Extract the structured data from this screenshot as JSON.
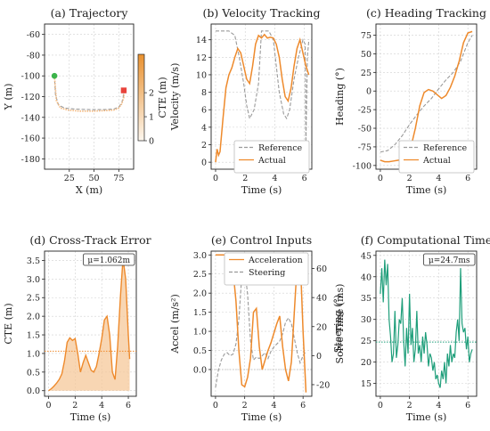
{
  "colors": {
    "actual": "#ee8a2c",
    "reference": "#9a9a9a",
    "start": "#3cb44b",
    "end": "#e8433c",
    "solve": "#1e9e7a",
    "fill": "#f6c89a"
  },
  "chart_data": [
    {
      "id": "a",
      "type": "line",
      "title": "(a) Trajectory",
      "xlabel": "X (m)",
      "ylabel": "Y (m)",
      "xlim": [
        0,
        90
      ],
      "ylim": [
        -190,
        -50
      ],
      "xticks": [
        25,
        50,
        75
      ],
      "yticks": [
        -60,
        -80,
        -100,
        -120,
        -140,
        -160,
        -180
      ],
      "colorbar": {
        "label": "CTE (m)",
        "range": [
          0,
          3.6
        ],
        "ticks": [
          0,
          1,
          2
        ]
      },
      "series": [
        {
          "role": "reference",
          "x": [
            10,
            11,
            14,
            20,
            30,
            45,
            60,
            70,
            75,
            78,
            79.5,
            80
          ],
          "y": [
            -100,
            -118,
            -128,
            -131,
            -132,
            -132.5,
            -132.5,
            -132,
            -130,
            -126,
            -120,
            -114
          ]
        },
        {
          "role": "actual",
          "x": [
            10,
            12,
            16,
            24,
            35,
            50,
            62,
            70,
            75,
            78,
            80,
            80.5
          ],
          "y": [
            -100,
            -124,
            -131,
            -133,
            -134,
            -134,
            -133.5,
            -133,
            -131,
            -127,
            -121,
            -114
          ]
        }
      ],
      "markers": {
        "start": [
          10,
          -100
        ],
        "end": [
          80,
          -114
        ]
      }
    },
    {
      "id": "b",
      "type": "line",
      "title": "(b) Velocity Tracking",
      "xlabel": "Time (s)",
      "ylabel": "Velocity (m/s)",
      "xlim": [
        -0.3,
        6.5
      ],
      "ylim": [
        -0.8,
        15.8
      ],
      "xticks": [
        0,
        2,
        4,
        6
      ],
      "yticks": [
        0,
        2,
        4,
        6,
        8,
        10,
        12,
        14
      ],
      "legend": [
        "Reference",
        "Actual"
      ],
      "legend_position": "lower-right",
      "series": [
        {
          "name": "Reference",
          "x": [
            0,
            0.5,
            0.9,
            1.3,
            1.6,
            1.9,
            2.1,
            2.3,
            2.6,
            2.9,
            3.1,
            3.3,
            3.6,
            3.9,
            4.1,
            4.3,
            4.6,
            4.8,
            5.0,
            5.3,
            5.6,
            5.9,
            6.05,
            6.1,
            6.2,
            6.3
          ],
          "y": [
            15,
            15,
            15,
            14.5,
            12,
            9,
            6.5,
            5,
            6,
            9,
            15,
            15,
            15,
            14,
            11,
            8,
            5.5,
            5,
            6,
            9.5,
            12,
            14,
            13.5,
            2,
            12,
            14
          ]
        },
        {
          "name": "Actual",
          "x": [
            0,
            0.1,
            0.2,
            0.3,
            0.5,
            0.7,
            0.9,
            1.1,
            1.3,
            1.5,
            1.7,
            1.9,
            2.1,
            2.3,
            2.5,
            2.7,
            2.9,
            3.1,
            3.3,
            3.5,
            3.7,
            3.9,
            4.1,
            4.3,
            4.5,
            4.7,
            4.9,
            5.1,
            5.3,
            5.5,
            5.7,
            5.9,
            6.1,
            6.3
          ],
          "y": [
            0,
            1.5,
            0.8,
            1.2,
            5,
            8.5,
            10,
            10.8,
            12,
            13,
            12.5,
            11,
            9.5,
            9,
            11,
            13.5,
            14.5,
            14.2,
            14.6,
            14.2,
            14.3,
            14.2,
            13.5,
            12,
            9.5,
            7.5,
            7,
            8.5,
            11,
            13,
            14,
            12.5,
            11,
            10
          ]
        }
      ]
    },
    {
      "id": "c",
      "type": "line",
      "title": "(c) Heading Tracking",
      "xlabel": "Time (s)",
      "ylabel": "Heading (°)",
      "xlim": [
        -0.3,
        6.6
      ],
      "ylim": [
        -105,
        90
      ],
      "xticks": [
        0,
        2,
        4,
        6
      ],
      "yticks": [
        -100,
        -75,
        -50,
        -25,
        0,
        25,
        50,
        75
      ],
      "legend": [
        "Reference",
        "Actual"
      ],
      "legend_position": "lower-right",
      "series": [
        {
          "name": "Reference",
          "x": [
            0,
            0.5,
            1.0,
            1.5,
            2.0,
            2.5,
            3.0,
            3.5,
            4.0,
            4.5,
            5.0,
            5.5,
            6.0,
            6.3
          ],
          "y": [
            -82,
            -80,
            -72,
            -60,
            -45,
            -32,
            -20,
            -10,
            3,
            15,
            25,
            40,
            65,
            75
          ]
        },
        {
          "name": "Actual",
          "x": [
            0,
            0.3,
            0.6,
            0.9,
            1.2,
            1.5,
            1.8,
            2.1,
            2.4,
            2.7,
            3.0,
            3.3,
            3.6,
            3.9,
            4.2,
            4.5,
            4.8,
            5.1,
            5.4,
            5.7,
            6.0,
            6.3
          ],
          "y": [
            -93,
            -95,
            -95,
            -94,
            -93,
            -92,
            -88,
            -75,
            -50,
            -20,
            -2,
            2,
            0,
            -5,
            -10,
            -6,
            5,
            20,
            40,
            65,
            78,
            80
          ]
        }
      ]
    },
    {
      "id": "d",
      "type": "area",
      "title": "(d) Cross-Track Error",
      "xlabel": "Time (s)",
      "ylabel": "CTE (m)",
      "xlim": [
        -0.3,
        6.6
      ],
      "ylim": [
        -0.15,
        3.75
      ],
      "xticks": [
        0,
        2,
        4,
        6
      ],
      "yticks": [
        0.0,
        0.5,
        1.0,
        1.5,
        2.0,
        2.5,
        3.0,
        3.5
      ],
      "annotation": "μ=1.062m",
      "mean": 1.062,
      "series": [
        {
          "name": "CTE",
          "x": [
            0,
            0.2,
            0.4,
            0.6,
            0.8,
            1.0,
            1.2,
            1.4,
            1.6,
            1.8,
            2.0,
            2.2,
            2.4,
            2.6,
            2.8,
            3.0,
            3.2,
            3.4,
            3.6,
            3.8,
            4.0,
            4.2,
            4.4,
            4.6,
            4.8,
            5.0,
            5.2,
            5.4,
            5.6,
            5.8,
            6.0,
            6.1
          ],
          "y": [
            0.0,
            0.05,
            0.12,
            0.2,
            0.3,
            0.45,
            0.8,
            1.3,
            1.42,
            1.35,
            1.4,
            1.0,
            0.5,
            0.75,
            0.95,
            0.75,
            0.55,
            0.5,
            0.65,
            1.0,
            1.4,
            1.9,
            2.0,
            1.5,
            0.5,
            0.3,
            1.2,
            2.5,
            3.55,
            3.0,
            1.5,
            0.85
          ]
        }
      ]
    },
    {
      "id": "e",
      "type": "line",
      "title": "(e) Control Inputs",
      "xlabel": "Time (s)",
      "ylabel": "Accel (m/s²)",
      "ylabel_right": "Steering (°)",
      "xlim": [
        -0.3,
        6.6
      ],
      "ylim": [
        -0.7,
        3.1
      ],
      "ylim_right": [
        -28,
        72
      ],
      "xticks": [
        0,
        2,
        4,
        6
      ],
      "yticks": [
        0.0,
        0.5,
        1.0,
        1.5,
        2.0,
        2.5,
        3.0
      ],
      "yticks_right": [
        -20,
        0,
        20,
        40,
        60
      ],
      "legend": [
        "Acceleration",
        "Steering"
      ],
      "legend_position": "top-right",
      "series": [
        {
          "name": "Acceleration",
          "axis": "left",
          "x": [
            0,
            0.05,
            0.1,
            0.2,
            0.4,
            0.8,
            1.0,
            1.2,
            1.4,
            1.6,
            1.8,
            2.0,
            2.2,
            2.4,
            2.6,
            2.8,
            3.0,
            3.2,
            3.4,
            3.6,
            3.8,
            4.0,
            4.2,
            4.4,
            4.6,
            4.8,
            5.0,
            5.2,
            5.4,
            5.6,
            5.8,
            6.0,
            6.2
          ],
          "y": [
            3.0,
            3.0,
            3.0,
            3.0,
            3.0,
            3.0,
            3.0,
            2.6,
            1.8,
            0.5,
            -0.4,
            -0.45,
            -0.2,
            0.3,
            1.5,
            1.6,
            0.6,
            0.0,
            0.25,
            0.5,
            0.7,
            0.95,
            1.2,
            1.4,
            0.6,
            0.0,
            -0.3,
            0.2,
            1.5,
            2.8,
            3.0,
            1.0,
            -0.6
          ]
        },
        {
          "name": "Steering",
          "axis": "right",
          "x": [
            0,
            0.2,
            0.4,
            0.6,
            0.8,
            1.0,
            1.2,
            1.4,
            1.6,
            1.8,
            2.0,
            2.2,
            2.4,
            2.6,
            2.8,
            3.0,
            3.2,
            3.4,
            3.6,
            3.8,
            4.0,
            4.2,
            4.4,
            4.6,
            4.8,
            5.0,
            5.2,
            5.4,
            5.6,
            5.8,
            6.0,
            6.2
          ],
          "y": [
            -22,
            -10,
            -3,
            1,
            2,
            0,
            1,
            8,
            25,
            55,
            60,
            42,
            10,
            -3,
            -1,
            -2,
            0,
            2,
            -2,
            3,
            6,
            8,
            10,
            15,
            23,
            26,
            22,
            12,
            2,
            -5,
            0,
            3
          ]
        }
      ]
    },
    {
      "id": "f",
      "type": "line",
      "title": "(f) Computational Time",
      "xlabel": "Time (s)",
      "ylabel": "Solve Time (ms)",
      "xlim": [
        -0.3,
        6.6
      ],
      "ylim": [
        12,
        46
      ],
      "xticks": [
        0,
        2,
        4,
        6
      ],
      "yticks": [
        15,
        20,
        25,
        30,
        35,
        40,
        45
      ],
      "annotation": "μ=24.7ms",
      "mean": 24.7,
      "series": [
        {
          "name": "Solve Time",
          "x": [
            0.0,
            0.1,
            0.2,
            0.3,
            0.4,
            0.5,
            0.6,
            0.7,
            0.8,
            0.9,
            1.0,
            1.1,
            1.2,
            1.3,
            1.4,
            1.5,
            1.6,
            1.7,
            1.8,
            1.9,
            2.0,
            2.1,
            2.2,
            2.3,
            2.4,
            2.5,
            2.6,
            2.7,
            2.8,
            2.9,
            3.0,
            3.1,
            3.2,
            3.3,
            3.4,
            3.5,
            3.6,
            3.7,
            3.8,
            3.9,
            4.0,
            4.1,
            4.2,
            4.3,
            4.4,
            4.5,
            4.6,
            4.7,
            4.8,
            4.9,
            5.0,
            5.1,
            5.2,
            5.3,
            5.4,
            5.5,
            5.6,
            5.7,
            5.8,
            5.9,
            6.0,
            6.1,
            6.2,
            6.3
          ],
          "y": [
            36,
            42,
            34,
            44,
            38,
            43,
            30,
            26,
            20,
            22,
            32,
            21,
            24,
            30,
            29,
            35,
            25,
            19,
            28,
            22,
            36,
            24,
            28,
            20,
            23,
            32,
            22,
            24,
            20,
            26,
            22,
            27,
            24,
            19,
            22,
            21,
            18,
            20,
            16,
            17,
            15,
            14,
            18,
            16,
            20,
            15,
            22,
            19,
            24,
            20,
            22,
            21,
            27,
            30,
            25,
            42,
            29,
            27,
            28,
            23,
            26,
            20,
            22,
            23
          ]
        }
      ]
    }
  ]
}
